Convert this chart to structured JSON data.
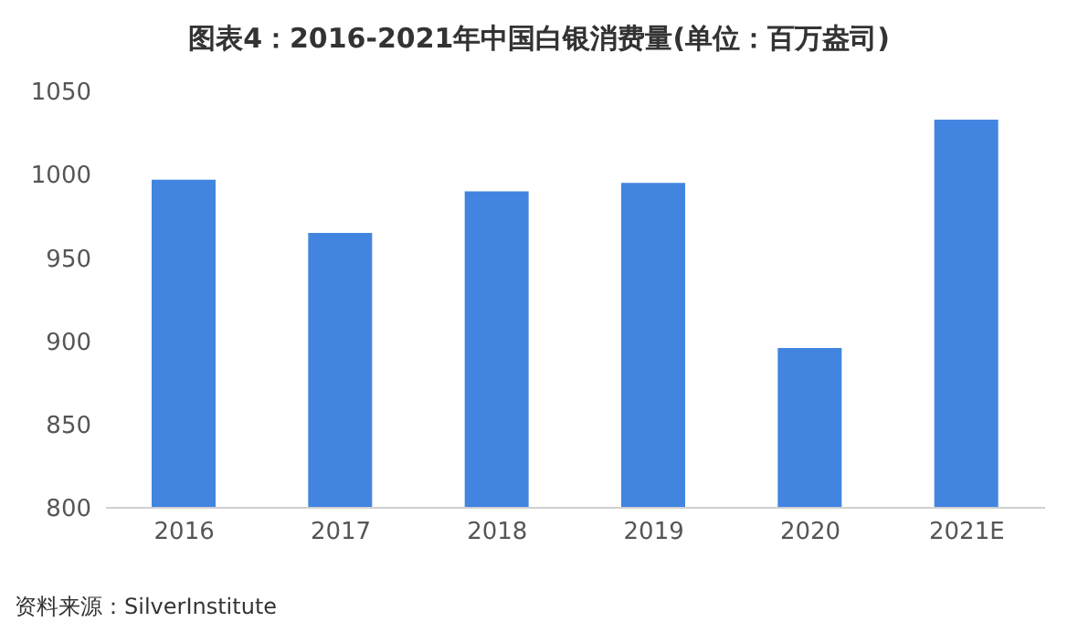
{
  "chart_data": {
    "type": "bar",
    "title": "图表4：2016-2021年中国白银消费量(单位：百万盎司)",
    "categories": [
      "2016",
      "2017",
      "2018",
      "2019",
      "2020",
      "2021E"
    ],
    "values": [
      997,
      965,
      990,
      995,
      896,
      1033
    ],
    "color": "#4285e0",
    "ylim": [
      800,
      1050
    ],
    "yticks": [
      800,
      850,
      900,
      950,
      1000,
      1050
    ],
    "grid": false,
    "annotations": [
      "资料来源：SilverInstitute"
    ]
  }
}
